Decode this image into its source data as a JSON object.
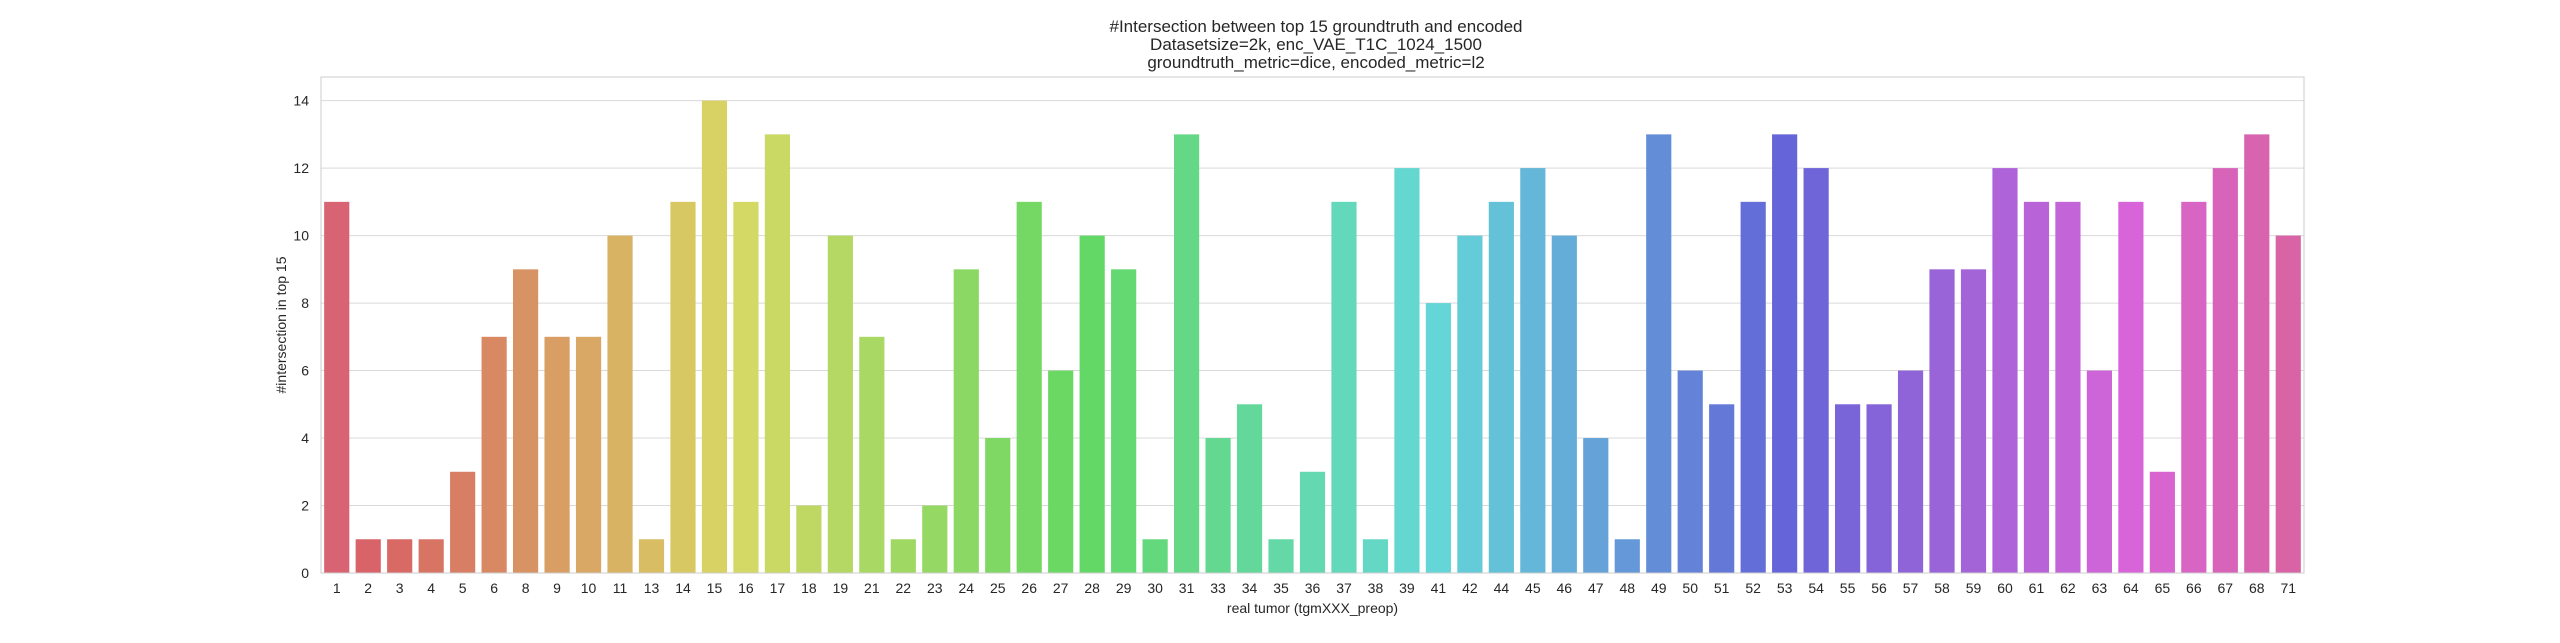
{
  "chart_data": {
    "type": "bar",
    "title_lines": [
      "#Intersection between top 15 groundtruth and encoded",
      "Datasetsize=2k, enc_VAE_T1C_1024_1500",
      "groundtruth_metric=dice, encoded_metric=l2"
    ],
    "xlabel": "real tumor (tgmXXX_preop)",
    "ylabel": "#intersection in top 15",
    "ylim": [
      0,
      14.7
    ],
    "yticks": [
      0,
      2,
      4,
      6,
      8,
      10,
      12,
      14
    ],
    "grid": true,
    "categories": [
      "1",
      "2",
      "3",
      "4",
      "5",
      "6",
      "8",
      "9",
      "10",
      "11",
      "13",
      "14",
      "15",
      "16",
      "17",
      "18",
      "19",
      "21",
      "22",
      "23",
      "24",
      "25",
      "26",
      "27",
      "28",
      "29",
      "30",
      "31",
      "33",
      "34",
      "35",
      "36",
      "37",
      "38",
      "39",
      "41",
      "42",
      "44",
      "45",
      "46",
      "47",
      "48",
      "49",
      "50",
      "51",
      "52",
      "53",
      "54",
      "55",
      "56",
      "57",
      "58",
      "59",
      "60",
      "61",
      "62",
      "63",
      "64",
      "65",
      "66",
      "67",
      "68",
      "71"
    ],
    "values": [
      11,
      1,
      1,
      1,
      3,
      7,
      9,
      7,
      7,
      10,
      1,
      11,
      14,
      11,
      13,
      2,
      10,
      7,
      1,
      2,
      9,
      4,
      11,
      6,
      10,
      9,
      1,
      13,
      4,
      5,
      1,
      3,
      11,
      1,
      12,
      8,
      10,
      11,
      12,
      10,
      4,
      1,
      13,
      6,
      5,
      11,
      13,
      12,
      5,
      5,
      6,
      9,
      9,
      12,
      11,
      11,
      6,
      11,
      3,
      11,
      12,
      13,
      10
    ]
  }
}
